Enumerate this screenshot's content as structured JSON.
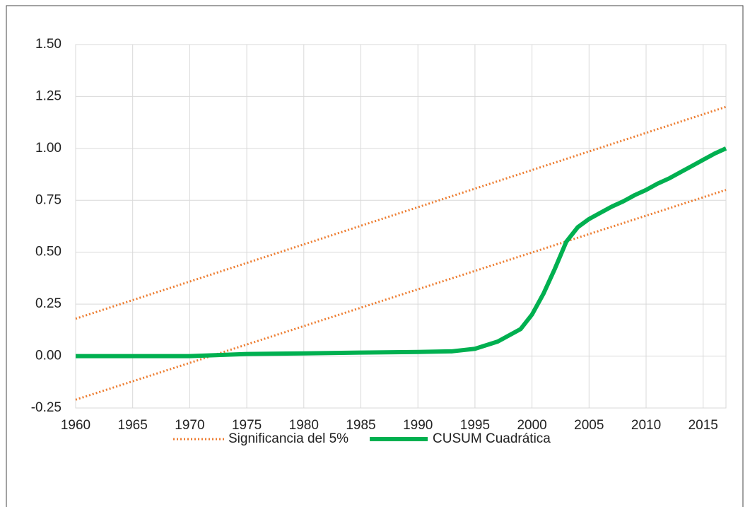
{
  "chart_data": {
    "type": "line",
    "xlim": [
      1960,
      2017
    ],
    "xticks": [
      1960,
      1965,
      1970,
      1975,
      1980,
      1985,
      1990,
      1995,
      2000,
      2005,
      2010,
      2015
    ],
    "ylim": [
      -0.25,
      1.5
    ],
    "yticks": [
      {
        "value": -0.25,
        "label": "-0.25"
      },
      {
        "value": 0,
        "label": "0.00"
      },
      {
        "value": 0.25,
        "label": "0.25"
      },
      {
        "value": 0.5,
        "label": "0.50"
      },
      {
        "value": 0.75,
        "label": "0.75"
      },
      {
        "value": 1,
        "label": "1.00"
      },
      {
        "value": 1.25,
        "label": "1.25"
      },
      {
        "value": 1.5,
        "label": "1.50"
      }
    ],
    "grid": true,
    "legend": "bottom",
    "series": [
      {
        "name": "Significancia del 5%",
        "color": "#ed7d31",
        "style": "dotted",
        "x": [
          1960,
          2017
        ],
        "values": [
          0.18,
          1.2
        ]
      },
      {
        "color": "#ed7d31",
        "style": "dotted",
        "x": [
          1960,
          2017
        ],
        "values": [
          -0.21,
          0.8
        ]
      },
      {
        "name": "CUSUM Cuadrática",
        "color": "#00b050",
        "style": "solid",
        "x": [
          1960,
          1965,
          1970,
          1975,
          1980,
          1985,
          1990,
          1993,
          1995,
          1997,
          1999,
          2000,
          2001,
          2002,
          2003,
          2004,
          2005,
          2006,
          2007,
          2008,
          2009,
          2010,
          2011,
          2012,
          2013,
          2014,
          2015,
          2016,
          2017
        ],
        "values": [
          0,
          0,
          0,
          0.01,
          0.013,
          0.017,
          0.02,
          0.023,
          0.035,
          0.07,
          0.13,
          0.2,
          0.3,
          0.42,
          0.55,
          0.62,
          0.66,
          0.69,
          0.72,
          0.745,
          0.775,
          0.8,
          0.83,
          0.855,
          0.885,
          0.915,
          0.945,
          0.975,
          1.0
        ]
      }
    ]
  }
}
